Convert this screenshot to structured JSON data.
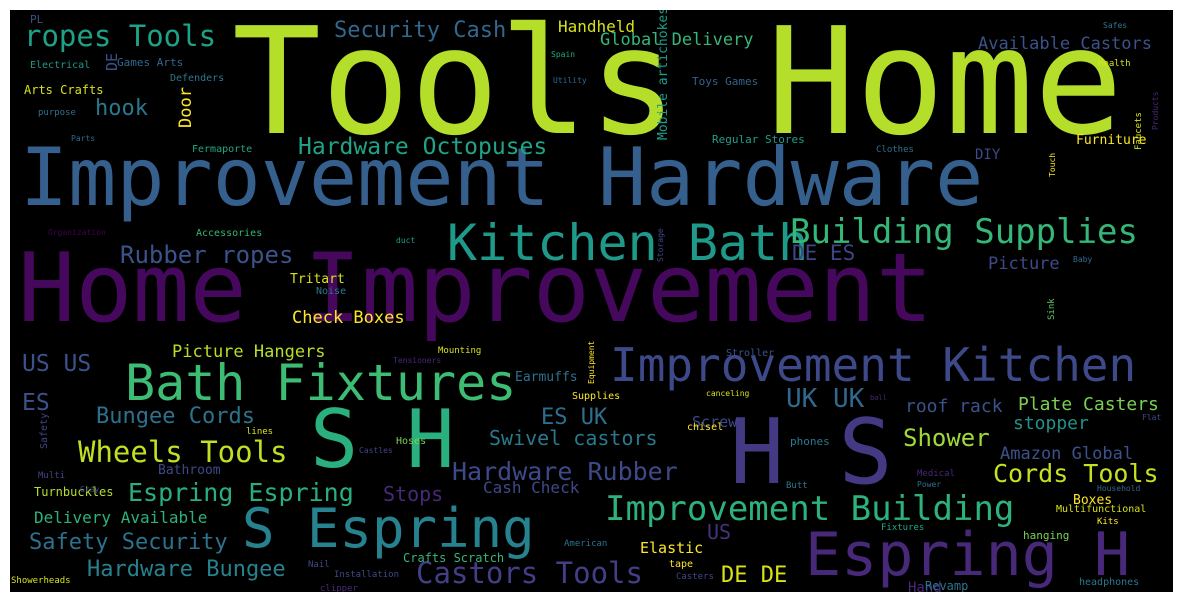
{
  "background_color": "#000000",
  "words": [
    {
      "text": "Tools Home",
      "color": "#b5de2b"
    },
    {
      "text": "Improvement Hardware",
      "color": "#355f8d"
    },
    {
      "text": "Home Improvement",
      "color": "#46085c"
    },
    {
      "text": "Kitchen Bath",
      "color": "#1f9a8a"
    },
    {
      "text": "Building Supplies",
      "color": "#35b779"
    },
    {
      "text": "Improvement Kitchen",
      "color": "#3e4989"
    },
    {
      "text": "Bath Fixtures",
      "color": "#3dbc74"
    },
    {
      "text": "S H",
      "color": "#2ab07f"
    },
    {
      "text": "H S",
      "color": "#443a83"
    },
    {
      "text": "S Espring",
      "color": "#26828e"
    },
    {
      "text": "Espring H",
      "color": "#482878"
    },
    {
      "text": "Improvement Building",
      "color": "#2db27d"
    },
    {
      "text": "ropes Tools",
      "color": "#1fa187"
    },
    {
      "text": "Security Cash",
      "color": "#31688e"
    },
    {
      "text": "Handheld",
      "color": "#d8e219"
    },
    {
      "text": "Global Delivery",
      "color": "#35b779"
    },
    {
      "text": "Available Castors",
      "color": "#3b528b"
    },
    {
      "text": "hook",
      "color": "#2a788e"
    },
    {
      "text": "Hardware Octopuses",
      "color": "#20a386"
    },
    {
      "text": "Door",
      "color": "#fde725"
    },
    {
      "text": "Rubber ropes",
      "color": "#3b528b"
    },
    {
      "text": "DE ES",
      "color": "#414487"
    },
    {
      "text": "Picture",
      "color": "#3e4a89"
    },
    {
      "text": "Check Boxes",
      "color": "#fde725"
    },
    {
      "text": "Picture Hangers",
      "color": "#b8de29"
    },
    {
      "text": "US US",
      "color": "#3b528b"
    },
    {
      "text": "ES",
      "color": "#3b528b"
    },
    {
      "text": "Bungee Cords",
      "color": "#2c728e"
    },
    {
      "text": "ES UK",
      "color": "#2d708e"
    },
    {
      "text": "UK UK",
      "color": "#31688e"
    },
    {
      "text": "roof rack",
      "color": "#3b528b"
    },
    {
      "text": "Plate Casters",
      "color": "#7ad151"
    },
    {
      "text": "stopper",
      "color": "#21918c"
    },
    {
      "text": "Shower",
      "color": "#a0da39"
    },
    {
      "text": "Wheels Tools",
      "color": "#c2df23"
    },
    {
      "text": "Swivel castors",
      "color": "#2a788e"
    },
    {
      "text": "Hardware Rubber",
      "color": "#3e4989"
    },
    {
      "text": "Amazon Global",
      "color": "#3b528b"
    },
    {
      "text": "Cords Tools",
      "color": "#c8e020"
    },
    {
      "text": "Espring Espring",
      "color": "#29af7f"
    },
    {
      "text": "Stops",
      "color": "#482878"
    },
    {
      "text": "Cash Check",
      "color": "#3e4989"
    },
    {
      "text": "Boxes",
      "color": "#fde725"
    },
    {
      "text": "Delivery Available",
      "color": "#2db27d"
    },
    {
      "text": "Safety Security",
      "color": "#2c728e"
    },
    {
      "text": "Elastic",
      "color": "#fde725"
    },
    {
      "text": "US",
      "color": "#46337e"
    },
    {
      "text": "Hardware Bungee",
      "color": "#26828e"
    },
    {
      "text": "Castors Tools",
      "color": "#433e85"
    },
    {
      "text": "DE DE",
      "color": "#d8e219"
    },
    {
      "text": "Hand",
      "color": "#482878"
    },
    {
      "text": "Furniture",
      "color": "#fde725"
    },
    {
      "text": "DIY",
      "color": "#3e4989"
    },
    {
      "text": "Regular Stores",
      "color": "#1f9e89"
    },
    {
      "text": "Toys Games",
      "color": "#35608d"
    },
    {
      "text": "Mobile artichokes",
      "color": "#1f9e89"
    },
    {
      "text": "PL",
      "color": "#3b528b"
    },
    {
      "text": "Electrical",
      "color": "#1f9a8a"
    },
    {
      "text": "Games Arts",
      "color": "#31688e"
    },
    {
      "text": "DE",
      "color": "#3b528b"
    },
    {
      "text": "Arts Crafts",
      "color": "#d8e219"
    },
    {
      "text": "Defenders",
      "color": "#2a788e"
    },
    {
      "text": "purpose",
      "color": "#2c728e"
    },
    {
      "text": "Parts",
      "color": "#31688e"
    },
    {
      "text": "Fermaporte",
      "color": "#22a884"
    },
    {
      "text": "Accessories",
      "color": "#35b779"
    },
    {
      "text": "Organization",
      "color": "#440154"
    },
    {
      "text": "Tritart",
      "color": "#d8e219"
    },
    {
      "text": "Noise",
      "color": "#2a788e"
    },
    {
      "text": "duct",
      "color": "#1f9e89"
    },
    {
      "text": "Storage",
      "color": "#3e4989"
    },
    {
      "text": "Spain",
      "color": "#22a884"
    },
    {
      "text": "Utility",
      "color": "#31688e"
    },
    {
      "text": "Safes",
      "color": "#2a788e"
    },
    {
      "text": "Health",
      "color": "#d8e219"
    },
    {
      "text": "Products",
      "color": "#482878"
    },
    {
      "text": "Faucets",
      "color": "#d8e219"
    },
    {
      "text": "Clothes",
      "color": "#2c728e"
    },
    {
      "text": "Touch",
      "color": "#fde725"
    },
    {
      "text": "Baby",
      "color": "#31688e"
    },
    {
      "text": "Sink",
      "color": "#5ec962"
    },
    {
      "text": "Mounting",
      "color": "#d8e219"
    },
    {
      "text": "Tensioners",
      "color": "#482878"
    },
    {
      "text": "Equipment",
      "color": "#fde725"
    },
    {
      "text": "Earmuffs",
      "color": "#2c728e"
    },
    {
      "text": "Stroller",
      "color": "#3b528b"
    },
    {
      "text": "Supplies",
      "color": "#fde725"
    },
    {
      "text": "canceling",
      "color": "#d8e219"
    },
    {
      "text": "ball",
      "color": "#482878"
    },
    {
      "text": "Safety",
      "color": "#414487"
    },
    {
      "text": "lines",
      "color": "#d8e219"
    },
    {
      "text": "Castles",
      "color": "#414487"
    },
    {
      "text": "Hoses",
      "color": "#7ad151"
    },
    {
      "text": "Screw",
      "color": "#3e4989"
    },
    {
      "text": "chisel",
      "color": "#fde725"
    },
    {
      "text": "phones",
      "color": "#2a788e"
    },
    {
      "text": "Bathroom",
      "color": "#3e4989"
    },
    {
      "text": "Multi",
      "color": "#414487"
    },
    {
      "text": "Turnbuckles",
      "color": "#b5de2b"
    },
    {
      "text": "Gray",
      "color": "#3e4989"
    },
    {
      "text": "Butt",
      "color": "#2a788e"
    },
    {
      "text": "Medical",
      "color": "#482878"
    },
    {
      "text": "Power",
      "color": "#2c728e"
    },
    {
      "text": "Household",
      "color": "#31688e"
    },
    {
      "text": "Flat",
      "color": "#3e4989"
    },
    {
      "text": "Multifunctional",
      "color": "#d8e219"
    },
    {
      "text": "Kits",
      "color": "#fde725"
    },
    {
      "text": "Fixtures",
      "color": "#22a884"
    },
    {
      "text": "hanging",
      "color": "#7ad151"
    },
    {
      "text": "American",
      "color": "#2c728e"
    },
    {
      "text": "tape",
      "color": "#fde725"
    },
    {
      "text": "Crafts Scratch",
      "color": "#35b779"
    },
    {
      "text": "Nail",
      "color": "#3e4989"
    },
    {
      "text": "Installation",
      "color": "#3e4989"
    },
    {
      "text": "clipper",
      "color": "#482878"
    },
    {
      "text": "Showerheads",
      "color": "#d8e219"
    },
    {
      "text": "Casters",
      "color": "#3e4989"
    },
    {
      "text": "Revamp",
      "color": "#2c728e"
    },
    {
      "text": "headphones",
      "color": "#2a788e"
    }
  ]
}
